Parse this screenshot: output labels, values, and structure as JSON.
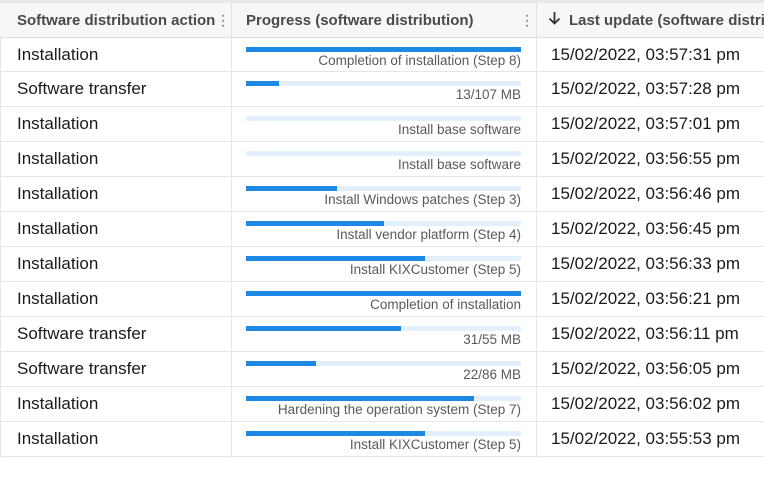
{
  "columns": {
    "action": "Software distribution action",
    "progress": "Progress (software distribution)",
    "last_update": "Last update (software distri"
  },
  "colors": {
    "bar_fill": "#1e88e5",
    "bar_track": "#e3effa"
  },
  "rows": [
    {
      "action": "Installation",
      "progress_label": "Completion of installation (Step 8)",
      "progress": 1.0,
      "date": "15/02/2022, 03:57:31 pm"
    },
    {
      "action": "Software transfer",
      "progress_label": "13/107 MB",
      "progress": 0.1215,
      "date": "15/02/2022, 03:57:28 pm"
    },
    {
      "action": "Installation",
      "progress_label": "Install base software",
      "progress": 0.0,
      "date": "15/02/2022, 03:57:01 pm"
    },
    {
      "action": "Installation",
      "progress_label": "Install base software",
      "progress": 0.0,
      "date": "15/02/2022, 03:56:55 pm"
    },
    {
      "action": "Installation",
      "progress_label": "Install Windows patches (Step 3)",
      "progress": 0.33,
      "date": "15/02/2022, 03:56:46 pm"
    },
    {
      "action": "Installation",
      "progress_label": "Install vendor platform (Step 4)",
      "progress": 0.5,
      "date": "15/02/2022, 03:56:45 pm"
    },
    {
      "action": "Installation",
      "progress_label": "Install KIXCustomer (Step 5)",
      "progress": 0.65,
      "date": "15/02/2022, 03:56:33 pm"
    },
    {
      "action": "Installation",
      "progress_label": "Completion of installation",
      "progress": 1.0,
      "date": "15/02/2022, 03:56:21 pm"
    },
    {
      "action": "Software transfer",
      "progress_label": "31/55 MB",
      "progress": 0.5636,
      "date": "15/02/2022, 03:56:11 pm"
    },
    {
      "action": "Software transfer",
      "progress_label": "22/86 MB",
      "progress": 0.2558,
      "date": "15/02/2022, 03:56:05 pm"
    },
    {
      "action": "Installation",
      "progress_label": "Hardening the operation system (Step 7)",
      "progress": 0.83,
      "date": "15/02/2022, 03:56:02 pm"
    },
    {
      "action": "Installation",
      "progress_label": "Install KIXCustomer (Step 5)",
      "progress": 0.65,
      "date": "15/02/2022, 03:55:53 pm"
    }
  ]
}
